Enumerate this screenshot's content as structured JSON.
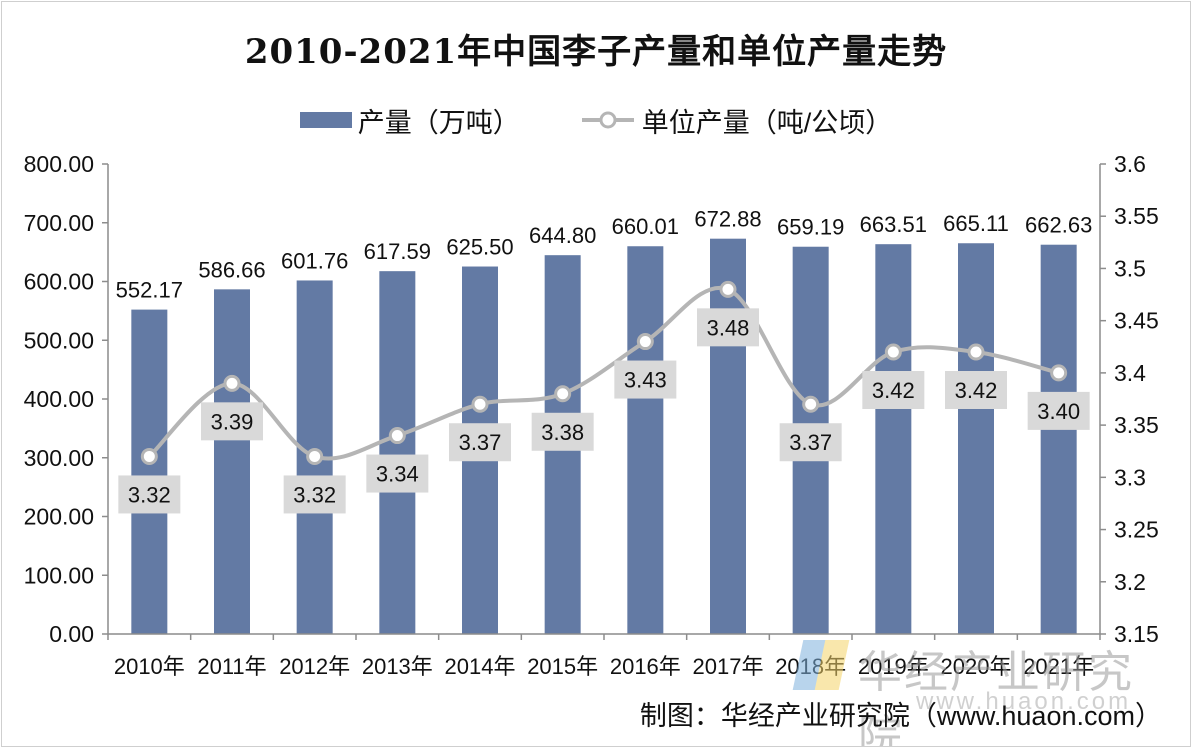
{
  "chart_data": {
    "type": "bar+line",
    "title": "2010-2021年中国李子产量和单位产量走势",
    "categories": [
      "2010年",
      "2011年",
      "2012年",
      "2013年",
      "2014年",
      "2015年",
      "2016年",
      "2017年",
      "2018年",
      "2019年",
      "2020年",
      "2021年"
    ],
    "series": [
      {
        "name": "产量（万吨）",
        "type": "bar",
        "axis": "left",
        "values": [
          552.17,
          586.66,
          601.76,
          617.59,
          625.5,
          644.8,
          660.01,
          672.88,
          659.19,
          663.51,
          665.11,
          662.63
        ],
        "labels": [
          "552.17",
          "586.66",
          "601.76",
          "617.59",
          "625.50",
          "644.80",
          "660.01",
          "672.88",
          "659.19",
          "663.51",
          "665.11",
          "662.63"
        ],
        "color": "#637aa4"
      },
      {
        "name": "单位产量（吨/公顷）",
        "type": "line",
        "axis": "right",
        "values": [
          3.32,
          3.39,
          3.32,
          3.34,
          3.37,
          3.38,
          3.43,
          3.48,
          3.37,
          3.42,
          3.42,
          3.4
        ],
        "labels": [
          "3.32",
          "3.39",
          "3.32",
          "3.34",
          "3.37",
          "3.38",
          "3.43",
          "3.48",
          "3.37",
          "3.42",
          "3.42",
          "3.40"
        ],
        "color": "#b5b5b5"
      }
    ],
    "y_left": {
      "range": [
        0,
        800
      ],
      "ticks": [
        0,
        100,
        200,
        300,
        400,
        500,
        600,
        700,
        800
      ],
      "tick_labels": [
        "0.00",
        "100.00",
        "200.00",
        "300.00",
        "400.00",
        "500.00",
        "600.00",
        "700.00",
        "800.00"
      ]
    },
    "y_right": {
      "range": [
        3.15,
        3.6
      ],
      "ticks": [
        3.15,
        3.2,
        3.25,
        3.3,
        3.35,
        3.4,
        3.45,
        3.5,
        3.55,
        3.6
      ],
      "tick_labels": [
        "3.15",
        "3.2",
        "3.25",
        "3.3",
        "3.35",
        "3.4",
        "3.45",
        "3.5",
        "3.55",
        "3.6"
      ]
    },
    "grid": false,
    "legend_position": "top-center"
  },
  "source_credit": "制图：华经产业研究院（www.huaon.com）",
  "watermark": {
    "text": "华经产业研究院",
    "url": "www.huaon.com"
  }
}
